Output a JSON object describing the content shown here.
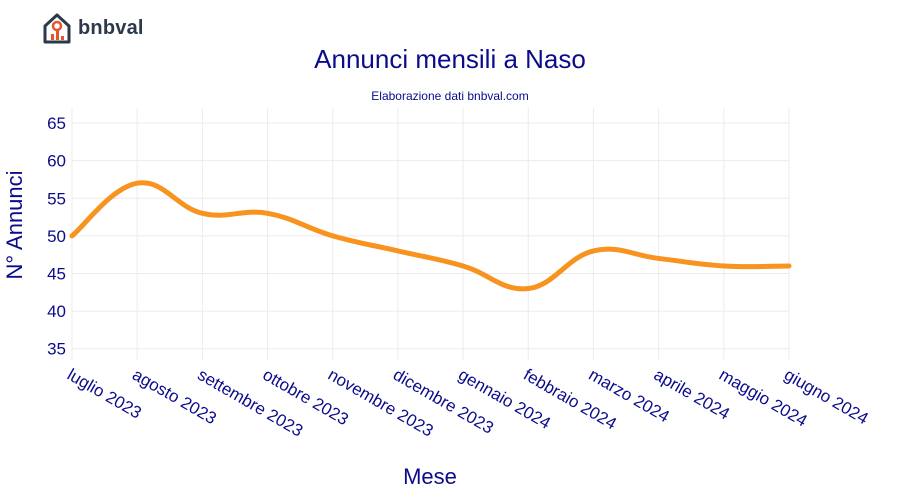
{
  "brand": {
    "name": "bnbval",
    "icon": "house-chart-icon",
    "colors": {
      "roof": "#2b3a4a",
      "accent": "#e4572e"
    }
  },
  "colors": {
    "text": "#0b0b8c",
    "line": "#f7931e",
    "grid": "#ebebeb"
  },
  "chart_data": {
    "type": "line",
    "title": "Annunci mensili a Naso",
    "subtitle": "Elaborazione dati bnbval.com",
    "xlabel": "Mese",
    "ylabel": "N° Annunci",
    "categories": [
      "luglio 2023",
      "agosto 2023",
      "settembre 2023",
      "ottobre 2023",
      "novembre 2023",
      "dicembre 2023",
      "gennaio 2024",
      "febbraio 2024",
      "marzo 2024",
      "aprile 2024",
      "maggio 2024",
      "giugno 2024"
    ],
    "series": [
      {
        "values": [
          50,
          57,
          53,
          53,
          50,
          48,
          46,
          43,
          48,
          47,
          46,
          46
        ]
      }
    ],
    "ylim": [
      33.5,
      67
    ],
    "yticks": [
      35,
      40,
      45,
      50,
      55,
      60,
      65
    ],
    "grid": true,
    "line_shape": "spline"
  }
}
